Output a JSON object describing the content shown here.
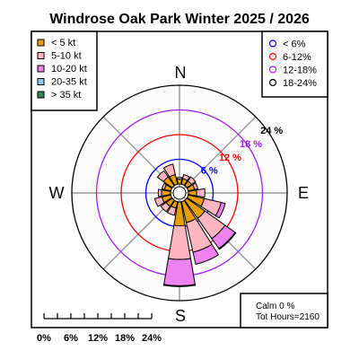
{
  "chart_data": {
    "type": "windrose",
    "title": "Windrose  Oak Park Winter 2025 / 2026",
    "compass": {
      "n": "N",
      "e": "E",
      "s": "S",
      "w": "W"
    },
    "rings": [
      {
        "value": 6,
        "label": "6 %",
        "color": "#0000ff"
      },
      {
        "value": 12,
        "label": "12 %",
        "color": "#ff0000"
      },
      {
        "value": 18,
        "label": "18 %",
        "color": "#a020f0"
      },
      {
        "value": 24,
        "label": "24 %",
        "color": "#000000"
      }
    ],
    "ring_legend": {
      "entries": [
        {
          "label": "< 6%",
          "color": "#0000ff"
        },
        {
          "label": "6-12%",
          "color": "#ff0000"
        },
        {
          "label": "12-18%",
          "color": "#a020f0"
        },
        {
          "label": "18-24%",
          "color": "#000000"
        }
      ]
    },
    "speed_legend": {
      "entries": [
        {
          "label": "< 5  kt",
          "color": "#e69f00"
        },
        {
          "label": "5-10 kt",
          "color": "#ffb6c1"
        },
        {
          "label": "10-20 kt",
          "color": "#ee82ee"
        },
        {
          "label": "20-35 kt",
          "color": "#87ceeb"
        },
        {
          "label": "> 35 kt",
          "color": "#2e8b57"
        }
      ]
    },
    "directions": [
      "N",
      "NNE",
      "NE",
      "ENE",
      "E",
      "ESE",
      "SE",
      "SSE",
      "S",
      "SSW",
      "SW",
      "WSW",
      "W",
      "WNW",
      "NW",
      "NNW"
    ],
    "bins": [
      "< 5 kt",
      "5-10 kt",
      "10-20 kt",
      "20-35 kt",
      "> 35 kt"
    ],
    "cumulative_percent": [
      [
        1.2,
        1.6,
        1.6,
        1.6,
        1.6
      ],
      [
        1.4,
        2.4,
        2.4,
        2.4,
        2.4
      ],
      [
        1.4,
        2.6,
        2.6,
        2.6,
        2.6
      ],
      [
        1.6,
        2.4,
        2.4,
        2.4,
        2.4
      ],
      [
        2.0,
        4.0,
        4.0,
        4.0,
        4.0
      ],
      [
        4.0,
        8.2,
        9.2,
        9.2,
        9.2
      ],
      [
        5.4,
        11.4,
        14.4,
        14.6,
        14.6
      ],
      [
        5.2,
        12.6,
        15.6,
        15.6,
        15.6
      ],
      [
        5.8,
        14.0,
        20.4,
        20.6,
        20.6
      ],
      [
        1.6,
        3.4,
        3.4,
        3.4,
        3.4
      ],
      [
        1.8,
        3.4,
        3.4,
        3.4,
        3.4
      ],
      [
        2.2,
        4.0,
        4.0,
        4.0,
        4.0
      ],
      [
        2.2,
        3.0,
        3.0,
        3.0,
        3.0
      ],
      [
        1.6,
        2.2,
        2.2,
        2.2,
        2.2
      ],
      [
        2.6,
        4.4,
        4.4,
        4.4,
        4.4
      ],
      [
        2.4,
        5.0,
        5.0,
        5.0,
        5.0
      ]
    ],
    "scale_bar": {
      "labels": [
        "0%",
        "6%",
        "12%",
        "18%",
        "24%"
      ]
    },
    "calm_text": "Calm 0 %",
    "hours_text": "Tot Hours=2160"
  }
}
